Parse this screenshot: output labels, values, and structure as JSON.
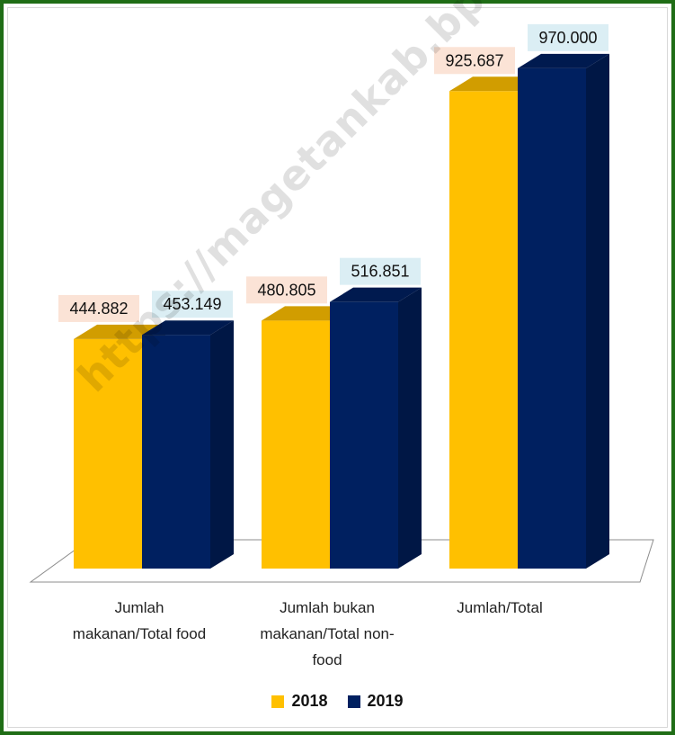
{
  "chart_data": {
    "type": "bar",
    "categories": [
      "Jumlah makanan/Total food",
      "Jumlah bukan makanan/Total non-food",
      "Jumlah/Total"
    ],
    "category_label_lines": [
      [
        "Jumlah",
        "makanan/Total food"
      ],
      [
        "Jumlah bukan",
        "makanan/Total non-",
        "food"
      ],
      [
        "Jumlah/Total"
      ]
    ],
    "series": [
      {
        "name": "2018",
        "values": [
          444882,
          480805,
          925687
        ],
        "labels": [
          "444.882",
          "480.805",
          "925.687"
        ],
        "color": "#ffc000",
        "label_bg": "#fbe3d6"
      },
      {
        "name": "2019",
        "values": [
          453149,
          516851,
          970000
        ],
        "labels": [
          "453.149",
          "516.851",
          "970.000"
        ],
        "color": "#002060",
        "label_bg": "#dbeef4"
      }
    ],
    "ylim": [
      0,
      1050000
    ],
    "legend_position": "bottom",
    "three_d": true,
    "grid": false
  },
  "legend": {
    "items": [
      {
        "label": "2018",
        "color": "#ffc000"
      },
      {
        "label": "2019",
        "color": "#002060"
      }
    ]
  },
  "watermark": {
    "text": "https://magetankab.bps.go.id"
  },
  "colors": {
    "frame": "#1f6d16"
  }
}
